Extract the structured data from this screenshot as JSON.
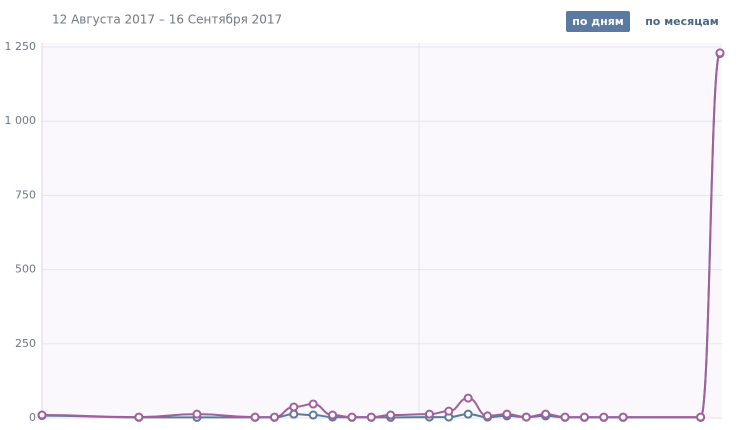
{
  "chart_data": {
    "type": "line",
    "title": "12 Августа 2017 – 16 Сентября 2017",
    "buttons": [
      "по дням",
      "по месяцам"
    ],
    "x": [
      0,
      5,
      8,
      11,
      12,
      13,
      14,
      15,
      16,
      17,
      18,
      20,
      21,
      22,
      23,
      24,
      25,
      26,
      27,
      28,
      29,
      30,
      34,
      35
    ],
    "xlim": [
      0,
      35
    ],
    "series": [
      {
        "color": "#5a7b9a",
        "values": [
          8,
          2,
          2,
          2,
          2,
          13,
          10,
          3,
          2,
          2,
          2,
          3,
          3,
          13,
          3,
          7,
          3,
          7,
          2,
          2,
          2,
          2,
          2,
          1228
        ]
      },
      {
        "color": "#a0609c",
        "values": [
          10,
          3,
          13,
          3,
          3,
          37,
          47,
          10,
          3,
          3,
          10,
          13,
          23,
          67,
          7,
          13,
          3,
          13,
          3,
          3,
          3,
          3,
          3,
          1230
        ]
      }
    ],
    "ylim": [
      0,
      1250
    ],
    "yticks": [
      0,
      250,
      500,
      750,
      {
        "value": 1000,
        "label": "1 000"
      },
      {
        "value": 1250,
        "label": "1 250"
      }
    ],
    "grid": true
  }
}
